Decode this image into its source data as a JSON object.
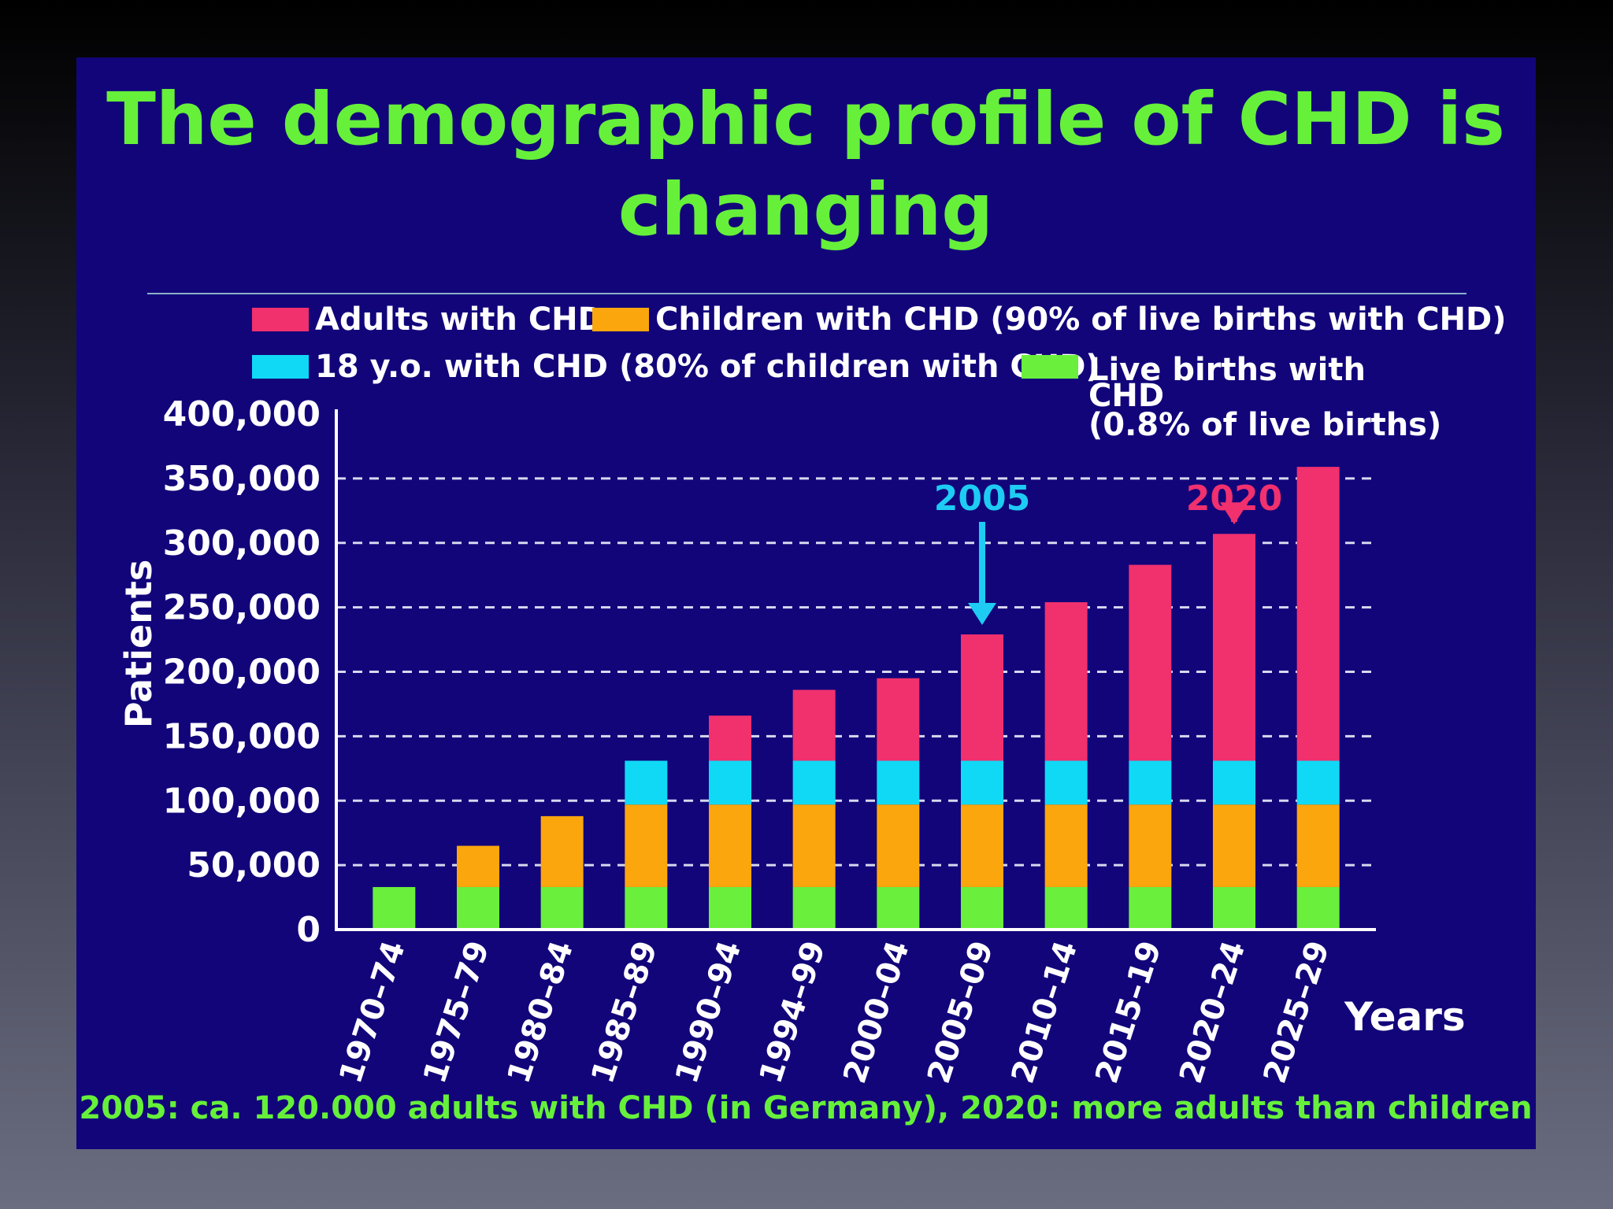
{
  "colors": {
    "background": "#12057a",
    "title": "#66f03a",
    "adults": "#f1306e",
    "children": "#fba60d",
    "eighteen": "#10d9f5",
    "births": "#6aef3c",
    "text": "#ffffff",
    "annotation_2005": "#1ecbf3",
    "annotation_2020": "#f1306e"
  },
  "chart_data": {
    "type": "bar",
    "stacked": true,
    "title_lines": [
      "The demographic profile of CHD is",
      "changing"
    ],
    "ylabel": "Patients",
    "xlabel": "Years",
    "ylim": [
      0,
      400000
    ],
    "yticks": [
      "400,000",
      "350,000",
      "300,000",
      "250,000",
      "200,000",
      "150,000",
      "100,000",
      "50,000",
      "0"
    ],
    "ytick_values": [
      400000,
      350000,
      300000,
      250000,
      200000,
      150000,
      100000,
      50000,
      0
    ],
    "grid": "dashed horizontal",
    "categories": [
      "1970–74",
      "1975–79",
      "1980–84",
      "1985–89",
      "1990–94",
      "1994–99",
      "2000–04",
      "2005–09",
      "2010–14",
      "2015–19",
      "2020–24",
      "2025–29"
    ],
    "series": [
      {
        "name": "Live births with CHD (0.8% of live births)",
        "color_key": "births",
        "values": [
          33000,
          33000,
          33000,
          33000,
          33000,
          33000,
          33000,
          33000,
          33000,
          33000,
          33000,
          33000
        ]
      },
      {
        "name": "Children with CHD (90% of live births with CHD)",
        "color_key": "children",
        "values": [
          0,
          32000,
          55000,
          64000,
          64000,
          64000,
          64000,
          64000,
          64000,
          64000,
          64000,
          64000
        ]
      },
      {
        "name": "18 y.o. with CHD (80% of children with CHD)",
        "color_key": "eighteen",
        "values": [
          0,
          0,
          0,
          34000,
          34000,
          34000,
          34000,
          34000,
          34000,
          34000,
          34000,
          34000
        ]
      },
      {
        "name": "Adults with CHD",
        "color_key": "adults",
        "values": [
          0,
          0,
          0,
          0,
          35000,
          55000,
          64000,
          98000,
          123000,
          152000,
          176000,
          228000
        ]
      }
    ],
    "legend": {
      "adults": "Adults with CHD",
      "children": "Children with CHD (90% of live births with CHD)",
      "eighteen": "18 y.o. with CHD (80% of children with CHD)",
      "births_line1": "Live births with",
      "births_line2": "CHD",
      "births_line3": "(0.8% of live births)"
    },
    "annotations": [
      {
        "label": "2005",
        "category_index": 7,
        "color_key": "annotation_2005"
      },
      {
        "label": "2020",
        "category_index": 10,
        "color_key": "annotation_2020"
      }
    ],
    "footer": "2005: ca. 120.000 adults with CHD (in Germany), 2020: more adults than children"
  }
}
